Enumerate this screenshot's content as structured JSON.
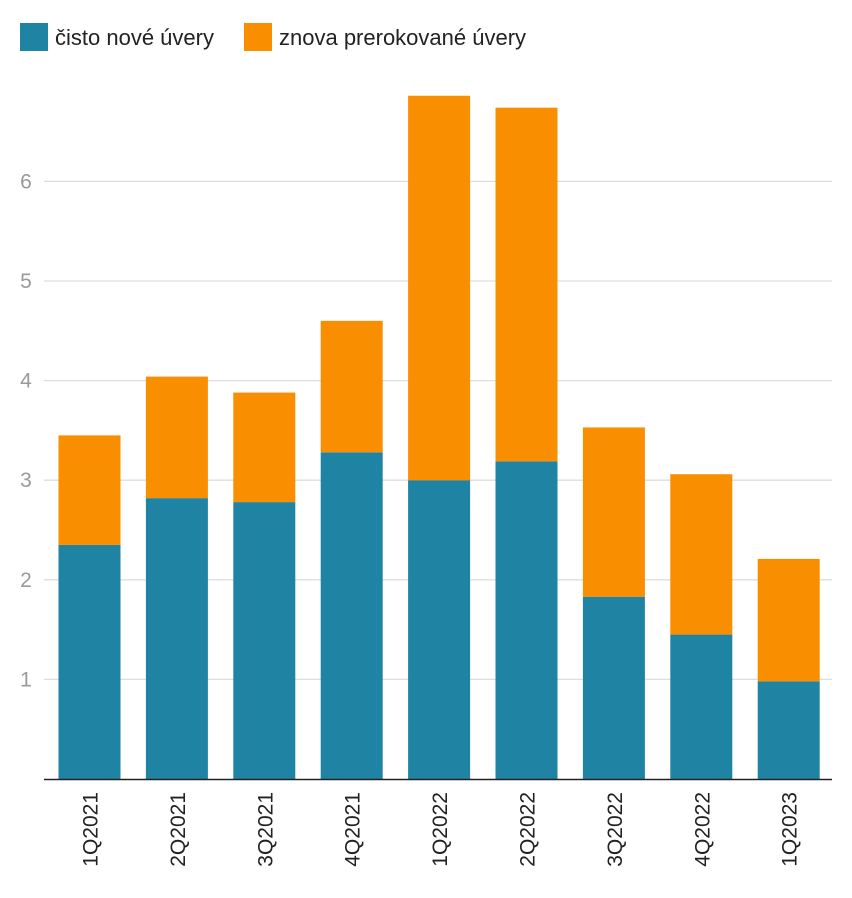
{
  "chart_data": {
    "type": "bar",
    "stacked": true,
    "categories": [
      "1Q2021",
      "2Q2021",
      "3Q2021",
      "4Q2021",
      "1Q2022",
      "2Q2022",
      "3Q2022",
      "4Q2022",
      "1Q2023"
    ],
    "series": [
      {
        "name": "čisto nové úvery",
        "color": "#1f83a3",
        "values": [
          2.35,
          2.82,
          2.78,
          3.28,
          3.0,
          3.19,
          1.83,
          1.45,
          0.98
        ]
      },
      {
        "name": "znova prerokované úvery",
        "color": "#f98e00",
        "values": [
          1.1,
          1.22,
          1.1,
          1.32,
          3.86,
          3.55,
          1.7,
          1.61,
          1.23
        ]
      }
    ],
    "y_ticks": [
      "1",
      "2",
      "3",
      "4",
      "5",
      "6"
    ],
    "ylim": [
      0,
      7
    ],
    "grid": true,
    "legend_position": "top-left",
    "xlabel": "",
    "ylabel": "",
    "title": ""
  }
}
